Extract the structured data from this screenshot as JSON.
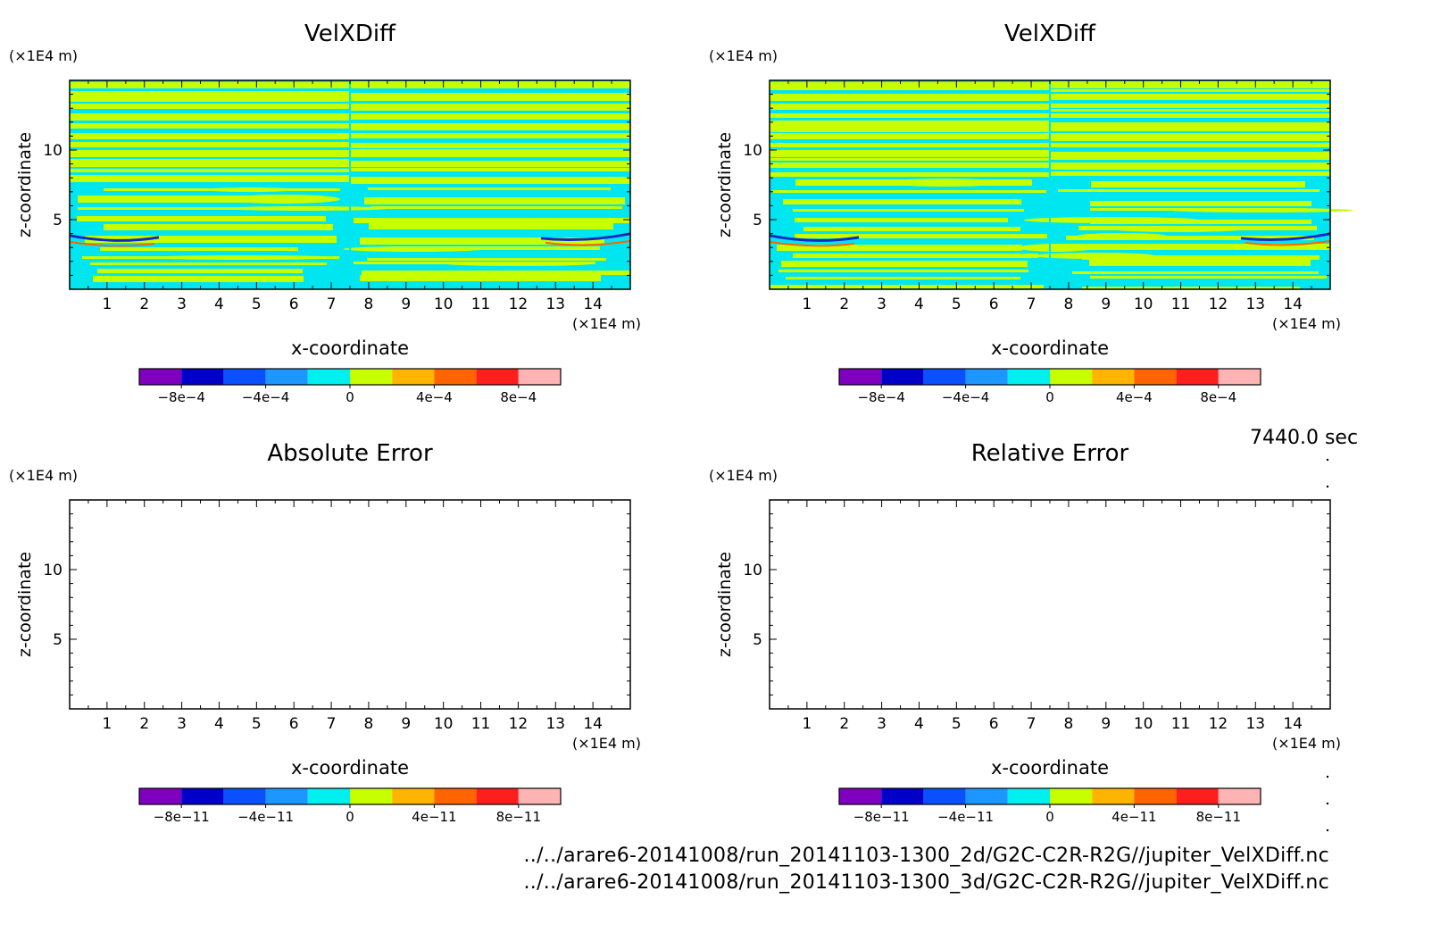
{
  "time_label": "7440.0 sec",
  "files": [
    "../../arare6-20141008/run_20141103-1300_2d/G2C-C2R-R2G//jupiter_VelXDiff.nc",
    "../../arare6-20141008/run_20141103-1300_3d/G2C-C2R-R2G//jupiter_VelXDiff.nc"
  ],
  "colors": {
    "palette": [
      "#7f00bf",
      "#0000c8",
      "#0a50ff",
      "#1e96ff",
      "#00f0f0",
      "#c8ff00",
      "#ffb400",
      "#ff6400",
      "#ff1e1e",
      "#ffb4b4"
    ],
    "band_low": "#00e6f0",
    "band_high": "#c8ff00",
    "extreme_neg": "#1428c8",
    "extreme_pos": "#ff6400"
  },
  "chart_data": [
    {
      "type": "heatmap",
      "title": "VelXDiff",
      "xlabel": "x-coordinate",
      "ylabel": "z-coordinate",
      "x_unit": "(×1E4 m)",
      "y_unit": "(×1E4 m)",
      "xlim": [
        0,
        15
      ],
      "ylim": [
        0,
        15
      ],
      "x_ticks": [
        1,
        2,
        3,
        4,
        5,
        6,
        7,
        8,
        9,
        10,
        11,
        12,
        13,
        14
      ],
      "y_ticks": [
        5,
        10
      ],
      "colorbar": {
        "min": -0.001,
        "max": 0.001,
        "tick_values": [
          -0.0008,
          -0.0004,
          0,
          0.0004,
          0.0008
        ],
        "tick_labels": [
          "−8e−4",
          "−4e−4",
          "0",
          "4e−4",
          "8e−4"
        ]
      },
      "field": "banded"
    },
    {
      "type": "heatmap",
      "title": "VelXDiff",
      "xlabel": "x-coordinate",
      "ylabel": "z-coordinate",
      "x_unit": "(×1E4 m)",
      "y_unit": "(×1E4 m)",
      "xlim": [
        0,
        15
      ],
      "ylim": [
        0,
        15
      ],
      "x_ticks": [
        1,
        2,
        3,
        4,
        5,
        6,
        7,
        8,
        9,
        10,
        11,
        12,
        13,
        14
      ],
      "y_ticks": [
        5,
        10
      ],
      "colorbar": {
        "min": -0.001,
        "max": 0.001,
        "tick_values": [
          -0.0008,
          -0.0004,
          0,
          0.0004,
          0.0008
        ],
        "tick_labels": [
          "−8e−4",
          "−4e−4",
          "0",
          "4e−4",
          "8e−4"
        ]
      },
      "field": "banded"
    },
    {
      "type": "heatmap",
      "title": "Absolute Error",
      "xlabel": "x-coordinate",
      "ylabel": "z-coordinate",
      "x_unit": "(×1E4 m)",
      "y_unit": "(×1E4 m)",
      "xlim": [
        0,
        15
      ],
      "ylim": [
        0,
        15
      ],
      "x_ticks": [
        1,
        2,
        3,
        4,
        5,
        6,
        7,
        8,
        9,
        10,
        11,
        12,
        13,
        14
      ],
      "y_ticks": [
        5,
        10
      ],
      "colorbar": {
        "min": -1e-10,
        "max": 1e-10,
        "tick_values": [
          -8e-11,
          -4e-11,
          0,
          4e-11,
          8e-11
        ],
        "tick_labels": [
          "−8e−11",
          "−4e−11",
          "0",
          "4e−11",
          "8e−11"
        ]
      },
      "field": "empty"
    },
    {
      "type": "heatmap",
      "title": "Relative Error",
      "xlabel": "x-coordinate",
      "ylabel": "z-coordinate",
      "x_unit": "(×1E4 m)",
      "y_unit": "(×1E4 m)",
      "xlim": [
        0,
        15
      ],
      "ylim": [
        0,
        15
      ],
      "x_ticks": [
        1,
        2,
        3,
        4,
        5,
        6,
        7,
        8,
        9,
        10,
        11,
        12,
        13,
        14
      ],
      "y_ticks": [
        5,
        10
      ],
      "colorbar": {
        "min": -1e-10,
        "max": 1e-10,
        "tick_values": [
          -8e-11,
          -4e-11,
          0,
          4e-11,
          8e-11
        ],
        "tick_labels": [
          "−8e−11",
          "−4e−11",
          "0",
          "4e−11",
          "8e−11"
        ]
      },
      "field": "empty"
    }
  ]
}
